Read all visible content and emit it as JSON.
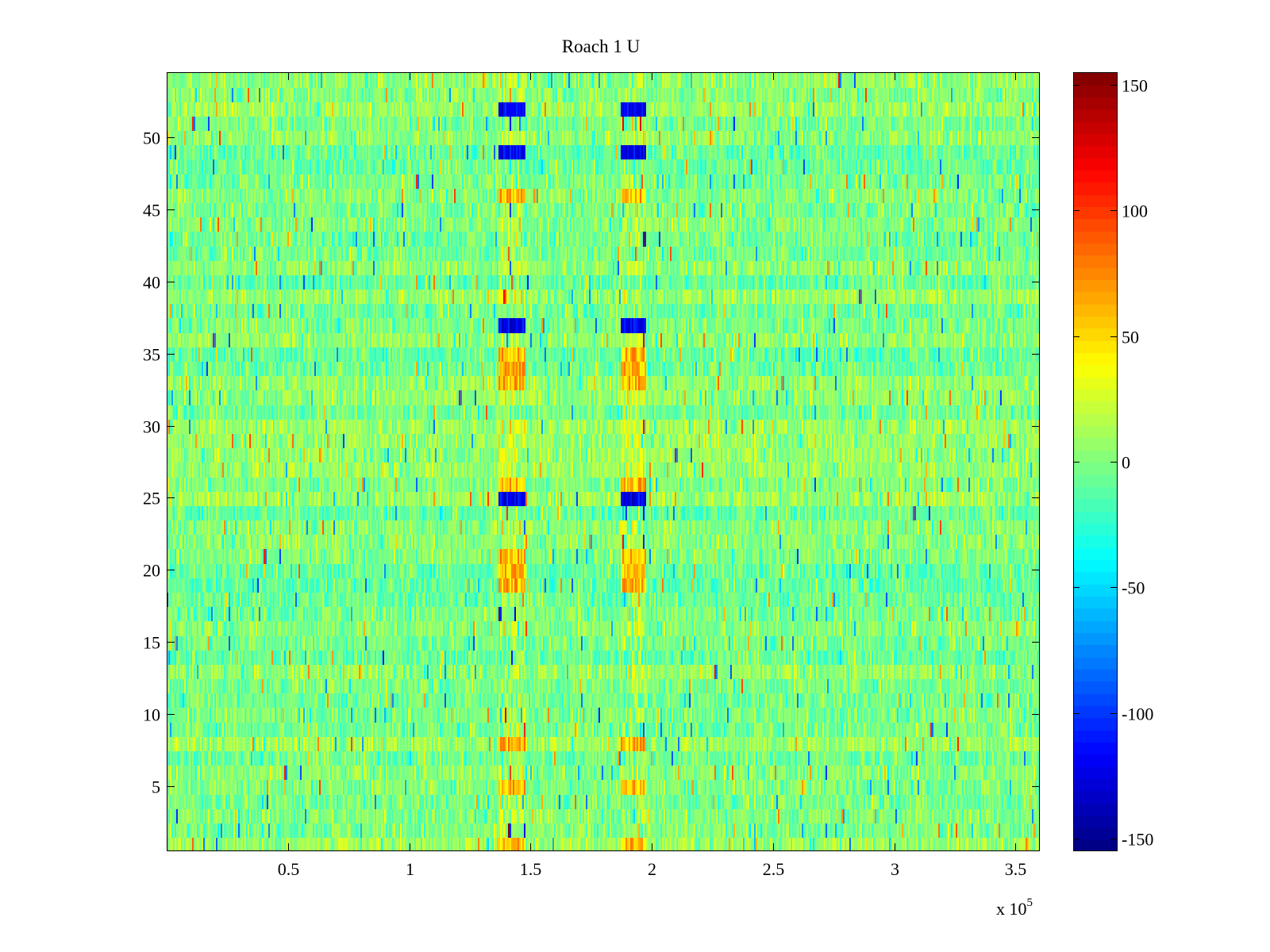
{
  "chart_data": {
    "type": "heatmap",
    "title": "Roach 1 U",
    "xlabel": "",
    "ylabel": "",
    "x_multiplier_label": "x 10",
    "x_multiplier_exponent": "5",
    "xlim": [
      0,
      360000
    ],
    "ylim": [
      0.5,
      54.5
    ],
    "x_ticks": [
      0.5,
      1,
      1.5,
      2,
      2.5,
      3,
      3.5
    ],
    "x_tick_labels": [
      "0.5",
      "1",
      "1.5",
      "2",
      "2.5",
      "3",
      "3.5"
    ],
    "y_ticks": [
      5,
      10,
      15,
      20,
      25,
      30,
      35,
      40,
      45,
      50
    ],
    "y_tick_labels": [
      "5",
      "10",
      "15",
      "20",
      "25",
      "30",
      "35",
      "40",
      "45",
      "50"
    ],
    "rows": 54,
    "colormap": "jet",
    "clim": [
      -155,
      155
    ],
    "colorbar_ticks": [
      150,
      100,
      50,
      0,
      -50,
      -100,
      -150
    ],
    "colorbar_tick_labels": [
      "150",
      "100",
      "50",
      "0",
      "-50",
      "-100",
      "-150"
    ],
    "background_value_range": [
      -40,
      40
    ],
    "event_bands_x": [
      {
        "start": 137000,
        "end": 148000
      },
      {
        "start": 187000,
        "end": 198000
      }
    ],
    "strong_negative_rows": [
      25,
      37,
      49,
      52
    ],
    "positive_rows": [
      1,
      5,
      8,
      19,
      20,
      21,
      26,
      33,
      34,
      35,
      46
    ]
  },
  "colors": {
    "background": "#ffffff",
    "axis": "#000000"
  }
}
